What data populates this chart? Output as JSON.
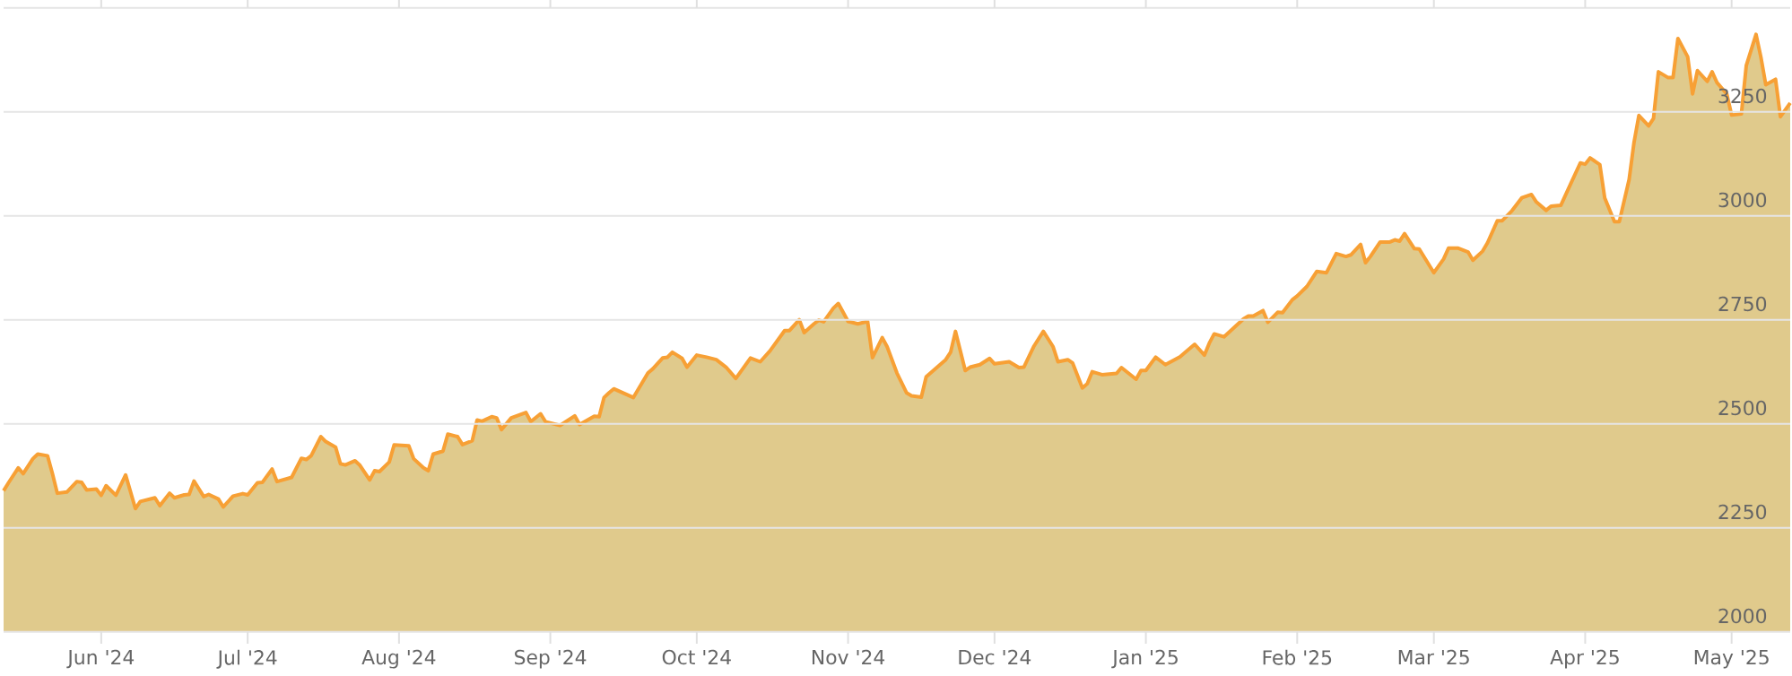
{
  "chart_data": {
    "type": "area",
    "color": "#e0ca8c",
    "grid": "y",
    "xlim": [
      "2024-05-12",
      "2025-05-13"
    ],
    "ylim": [
      2000,
      3500
    ],
    "xticks": [
      {
        "value": "2024-06-01",
        "label": "Jun '24"
      },
      {
        "value": "2024-07-01",
        "label": "Jul '24"
      },
      {
        "value": "2024-08-01",
        "label": "Aug '24"
      },
      {
        "value": "2024-09-01",
        "label": "Sep '24"
      },
      {
        "value": "2024-10-01",
        "label": "Oct '24"
      },
      {
        "value": "2024-11-01",
        "label": "Nov '24"
      },
      {
        "value": "2024-12-01",
        "label": "Dec '24"
      },
      {
        "value": "2025-01-01",
        "label": "Jan '25"
      },
      {
        "value": "2025-02-01",
        "label": "Feb '25"
      },
      {
        "value": "2025-03-01",
        "label": "Mar '25"
      },
      {
        "value": "2025-04-01",
        "label": "Apr '25"
      },
      {
        "value": "2025-05-01",
        "label": "May '25"
      }
    ],
    "yticks": [
      2000,
      2250,
      2500,
      2750,
      3000,
      3250,
      {
        "value": 3500,
        "label": null
      }
    ],
    "x": [
      "2024-05-12",
      "2024-05-13",
      "2024-05-15",
      "2024-05-16",
      "2024-05-18",
      "2024-05-19",
      "2024-05-21",
      "2024-05-22",
      "2024-05-23",
      "2024-05-25",
      "2024-05-27",
      "2024-05-28",
      "2024-05-29",
      "2024-05-31",
      "2024-06-01",
      "2024-06-02",
      "2024-06-04",
      "2024-06-06",
      "2024-06-08",
      "2024-06-09",
      "2024-06-12",
      "2024-06-13",
      "2024-06-15",
      "2024-06-16",
      "2024-06-18",
      "2024-06-19",
      "2024-06-20",
      "2024-06-22",
      "2024-06-23",
      "2024-06-25",
      "2024-06-26",
      "2024-06-28",
      "2024-06-30",
      "2024-07-01",
      "2024-07-03",
      "2024-07-04",
      "2024-07-06",
      "2024-07-07",
      "2024-07-10",
      "2024-07-12",
      "2024-07-13",
      "2024-07-14",
      "2024-07-16",
      "2024-07-17",
      "2024-07-19",
      "2024-07-20",
      "2024-07-21",
      "2024-07-23",
      "2024-07-24",
      "2024-07-26",
      "2024-07-27",
      "2024-07-28",
      "2024-07-30",
      "2024-07-31",
      "2024-08-03",
      "2024-08-04",
      "2024-08-06",
      "2024-08-07",
      "2024-08-08",
      "2024-08-10",
      "2024-08-11",
      "2024-08-13",
      "2024-08-14",
      "2024-08-16",
      "2024-08-17",
      "2024-08-18",
      "2024-08-20",
      "2024-08-21",
      "2024-08-22",
      "2024-08-24",
      "2024-08-27",
      "2024-08-28",
      "2024-08-30",
      "2024-08-31",
      "2024-09-03",
      "2024-09-06",
      "2024-09-07",
      "2024-09-10",
      "2024-09-11",
      "2024-09-12",
      "2024-09-13",
      "2024-09-14",
      "2024-09-18",
      "2024-09-21",
      "2024-09-22",
      "2024-09-24",
      "2024-09-25",
      "2024-09-26",
      "2024-09-28",
      "2024-09-29",
      "2024-10-01",
      "2024-10-03",
      "2024-10-05",
      "2024-10-07",
      "2024-10-09",
      "2024-10-12",
      "2024-10-14",
      "2024-10-16",
      "2024-10-19",
      "2024-10-20",
      "2024-10-22",
      "2024-10-23",
      "2024-10-25",
      "2024-10-26",
      "2024-10-27",
      "2024-10-29",
      "2024-10-30",
      "2024-11-01",
      "2024-11-03",
      "2024-11-05",
      "2024-11-06",
      "2024-11-08",
      "2024-11-09",
      "2024-11-11",
      "2024-11-13",
      "2024-11-14",
      "2024-11-16",
      "2024-11-17",
      "2024-11-21",
      "2024-11-22",
      "2024-11-23",
      "2024-11-25",
      "2024-11-26",
      "2024-11-28",
      "2024-11-30",
      "2024-12-01",
      "2024-12-04",
      "2024-12-06",
      "2024-12-07",
      "2024-12-09",
      "2024-12-11",
      "2024-12-13",
      "2024-12-14",
      "2024-12-16",
      "2024-12-17",
      "2024-12-19",
      "2024-12-20",
      "2024-12-21",
      "2024-12-23",
      "2024-12-26",
      "2024-12-27",
      "2024-12-30",
      "2024-12-31",
      "2025-01-01",
      "2025-01-03",
      "2025-01-05",
      "2025-01-08",
      "2025-01-09",
      "2025-01-11",
      "2025-01-13",
      "2025-01-14",
      "2025-01-15",
      "2025-01-17",
      "2025-01-21",
      "2025-01-22",
      "2025-01-23",
      "2025-01-25",
      "2025-01-26",
      "2025-01-28",
      "2025-01-29",
      "2025-01-31",
      "2025-02-01",
      "2025-02-03",
      "2025-02-05",
      "2025-02-07",
      "2025-02-09",
      "2025-02-11",
      "2025-02-12",
      "2025-02-14",
      "2025-02-15",
      "2025-02-16",
      "2025-02-18",
      "2025-02-20",
      "2025-02-21",
      "2025-02-22",
      "2025-02-23",
      "2025-02-25",
      "2025-02-26",
      "2025-03-01",
      "2025-03-03",
      "2025-03-04",
      "2025-03-06",
      "2025-03-08",
      "2025-03-09",
      "2025-03-11",
      "2025-03-12",
      "2025-03-14",
      "2025-03-15",
      "2025-03-17",
      "2025-03-19",
      "2025-03-21",
      "2025-03-22",
      "2025-03-24",
      "2025-03-25",
      "2025-03-27",
      "2025-03-29",
      "2025-03-31",
      "2025-04-01",
      "2025-04-02",
      "2025-04-04",
      "2025-04-05",
      "2025-04-07",
      "2025-04-08",
      "2025-04-10",
      "2025-04-11",
      "2025-04-12",
      "2025-04-14",
      "2025-04-15",
      "2025-04-16",
      "2025-04-18",
      "2025-04-19",
      "2025-04-20",
      "2025-04-22",
      "2025-04-23",
      "2025-04-24",
      "2025-04-26",
      "2025-04-27",
      "2025-04-28",
      "2025-04-30",
      "2025-05-01",
      "2025-05-03",
      "2025-05-04",
      "2025-05-06",
      "2025-05-07",
      "2025-05-08",
      "2025-05-10",
      "2025-05-11",
      "2025-05-13"
    ],
    "values": [
      2339,
      2358,
      2394,
      2380,
      2416,
      2427,
      2423,
      2380,
      2333,
      2336,
      2361,
      2359,
      2341,
      2343,
      2328,
      2351,
      2328,
      2377,
      2296,
      2313,
      2322,
      2303,
      2333,
      2322,
      2329,
      2330,
      2362,
      2325,
      2330,
      2319,
      2300,
      2326,
      2332,
      2329,
      2358,
      2359,
      2391,
      2361,
      2371,
      2417,
      2414,
      2423,
      2469,
      2457,
      2444,
      2404,
      2401,
      2411,
      2400,
      2365,
      2387,
      2385,
      2408,
      2449,
      2447,
      2416,
      2394,
      2387,
      2427,
      2434,
      2475,
      2469,
      2450,
      2459,
      2509,
      2506,
      2517,
      2514,
      2486,
      2514,
      2527,
      2505,
      2524,
      2505,
      2496,
      2519,
      2498,
      2518,
      2517,
      2563,
      2574,
      2584,
      2563,
      2622,
      2632,
      2658,
      2660,
      2672,
      2657,
      2636,
      2665,
      2660,
      2654,
      2636,
      2609,
      2658,
      2649,
      2675,
      2724,
      2724,
      2750,
      2719,
      2740,
      2749,
      2745,
      2778,
      2789,
      2746,
      2740,
      2746,
      2659,
      2707,
      2685,
      2622,
      2574,
      2567,
      2564,
      2613,
      2654,
      2672,
      2722,
      2628,
      2636,
      2642,
      2657,
      2644,
      2649,
      2635,
      2636,
      2685,
      2722,
      2685,
      2649,
      2654,
      2646,
      2586,
      2596,
      2625,
      2618,
      2621,
      2635,
      2607,
      2628,
      2628,
      2660,
      2642,
      2661,
      2671,
      2691,
      2665,
      2694,
      2716,
      2709,
      2752,
      2759,
      2759,
      2772,
      2744,
      2768,
      2767,
      2798,
      2807,
      2830,
      2866,
      2863,
      2909,
      2902,
      2906,
      2931,
      2887,
      2902,
      2937,
      2937,
      2942,
      2939,
      2957,
      2921,
      2920,
      2863,
      2896,
      2922,
      2922,
      2913,
      2893,
      2915,
      2935,
      2988,
      2988,
      3012,
      3043,
      3051,
      3033,
      3013,
      3023,
      3025,
      3076,
      3127,
      3124,
      3139,
      3123,
      3043,
      2986,
      2986,
      3087,
      3176,
      3241,
      3216,
      3234,
      3346,
      3332,
      3332,
      3426,
      3382,
      3293,
      3349,
      3323,
      3346,
      3320,
      3293,
      3242,
      3245,
      3361,
      3436,
      3381,
      3315,
      3328,
      3238,
      3271
    ]
  }
}
